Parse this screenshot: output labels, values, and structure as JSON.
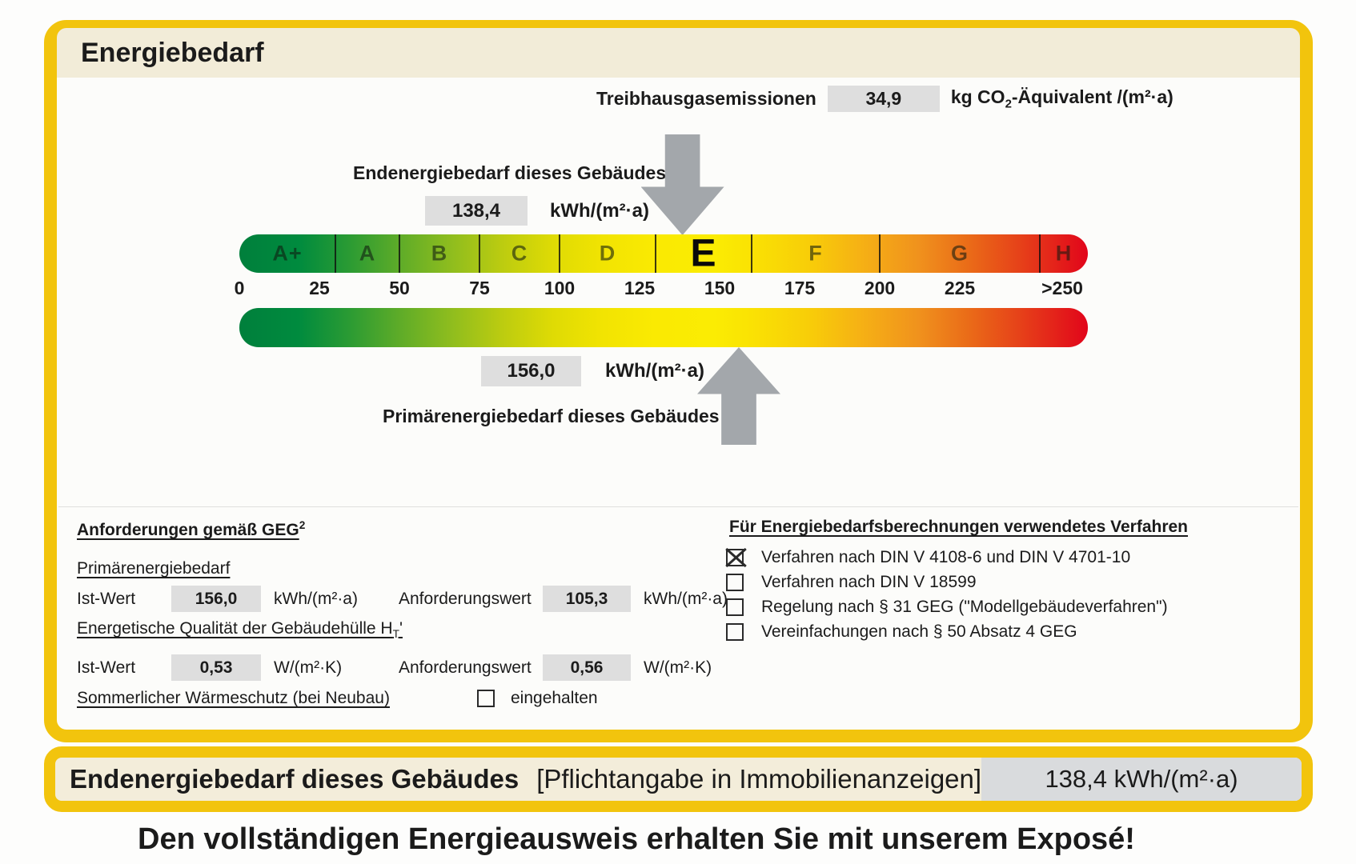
{
  "header": {
    "title": "Energiebedarf"
  },
  "emissions": {
    "label": "Treibhausgasemissionen",
    "value": "34,9",
    "unit_pre": "kg CO",
    "unit_sub": "2",
    "unit_post": "-Äquivalent /(m²·a)"
  },
  "end_energy": {
    "label": "Endenergiebedarf dieses Gebäudes",
    "value": "138,4",
    "unit": "kWh/(m²·a)"
  },
  "primary_energy": {
    "label": "Primärenergiebedarf dieses Gebäudes",
    "value": "156,0",
    "unit": "kWh/(m²·a)"
  },
  "chart_data": {
    "type": "scale",
    "title": "Energiebedarfsskala (Bandtacho)",
    "unit": "kWh/(m²·a)",
    "axis_range": [
      0,
      265
    ],
    "grid": false,
    "classes": [
      {
        "label": "A+",
        "min": 0,
        "max": 30,
        "color": "#00843D"
      },
      {
        "label": "A",
        "min": 30,
        "max": 50,
        "color": "#3AA02F"
      },
      {
        "label": "B",
        "min": 50,
        "max": 75,
        "color": "#8CBB20"
      },
      {
        "label": "C",
        "min": 75,
        "max": 100,
        "color": "#CBD309"
      },
      {
        "label": "D",
        "min": 100,
        "max": 130,
        "color": "#F3E600"
      },
      {
        "label": "E",
        "min": 130,
        "max": 160,
        "color": "#FCEC00"
      },
      {
        "label": "F",
        "min": 160,
        "max": 200,
        "color": "#F9C908"
      },
      {
        "label": "G",
        "min": 200,
        "max": 250,
        "color": "#EF8B1C"
      },
      {
        "label": "H",
        "min": 250,
        "max": 265,
        "color": "#E2131B"
      }
    ],
    "current_class": "E",
    "ticks": [
      {
        "label": "0",
        "value": 0
      },
      {
        "label": "25",
        "value": 25
      },
      {
        "label": "50",
        "value": 50
      },
      {
        "label": "75",
        "value": 75
      },
      {
        "label": "100",
        "value": 100
      },
      {
        "label": "125",
        "value": 125
      },
      {
        "label": "150",
        "value": 150
      },
      {
        "label": "175",
        "value": 175
      },
      {
        "label": "200",
        "value": 200
      },
      {
        "label": "225",
        "value": 225
      },
      {
        "label": ">250",
        "value": 257
      }
    ],
    "markers": [
      {
        "name": "Endenergiebedarf dieses Gebäudes",
        "value": 138.4,
        "direction": "down"
      },
      {
        "name": "Primärenergiebedarf dieses Gebäudes",
        "value": 156.0,
        "direction": "up"
      }
    ]
  },
  "requirements": {
    "heading": "Anforderungen gemäß GEG",
    "heading_footnote": "2",
    "primary_heading": "Primärenergiebedarf",
    "envelope_heading_main": "Energetische Qualität der Gebäudehülle H",
    "envelope_heading_sub": "T",
    "envelope_heading_prime": "'",
    "rows": [
      {
        "ist_label": "Ist-Wert",
        "ist_value": "156,0",
        "ist_unit": "kWh/(m²·a)",
        "req_label": "Anforderungswert",
        "req_value": "105,3",
        "req_unit": "kWh/(m²·a)"
      },
      {
        "ist_label": "Ist-Wert",
        "ist_value": "0,53",
        "ist_unit": "W/(m²·K)",
        "req_label": "Anforderungswert",
        "req_value": "0,56",
        "req_unit": "W/(m²·K)"
      }
    ],
    "summer_label": "Sommerlicher Wärmeschutz (bei Neubau)",
    "summer_checkbox_label": "eingehalten",
    "summer_checked": false
  },
  "methods": {
    "heading": "Für Energiebedarfsberechnungen verwendetes Verfahren",
    "items": [
      {
        "label": "Verfahren nach DIN V 4108-6 und DIN V 4701-10",
        "checked": true
      },
      {
        "label": "Verfahren nach DIN V 18599",
        "checked": false
      },
      {
        "label": "Regelung nach § 31 GEG (\"Modellgebäudeverfahren\")",
        "checked": false
      },
      {
        "label": "Vereinfachungen nach § 50 Absatz 4 GEG",
        "checked": false
      }
    ]
  },
  "footer_bar": {
    "label_bold": "Endenergiebedarf dieses Gebäudes",
    "label_note": "[Pflichtangabe in Immobilienanzeigen]",
    "value": "138,4 kWh/(m²·a)"
  },
  "caption": "Den vollständigen Energieausweis erhalten Sie mit unserem Exposé!",
  "colors": {
    "frame_yellow": "#F2C40D",
    "header_beige": "#F2ECD8",
    "value_box_gray": "#DEDEDE",
    "arrow_gray": "#A3A7AB",
    "footer_value_gray": "#D9DBDD"
  }
}
